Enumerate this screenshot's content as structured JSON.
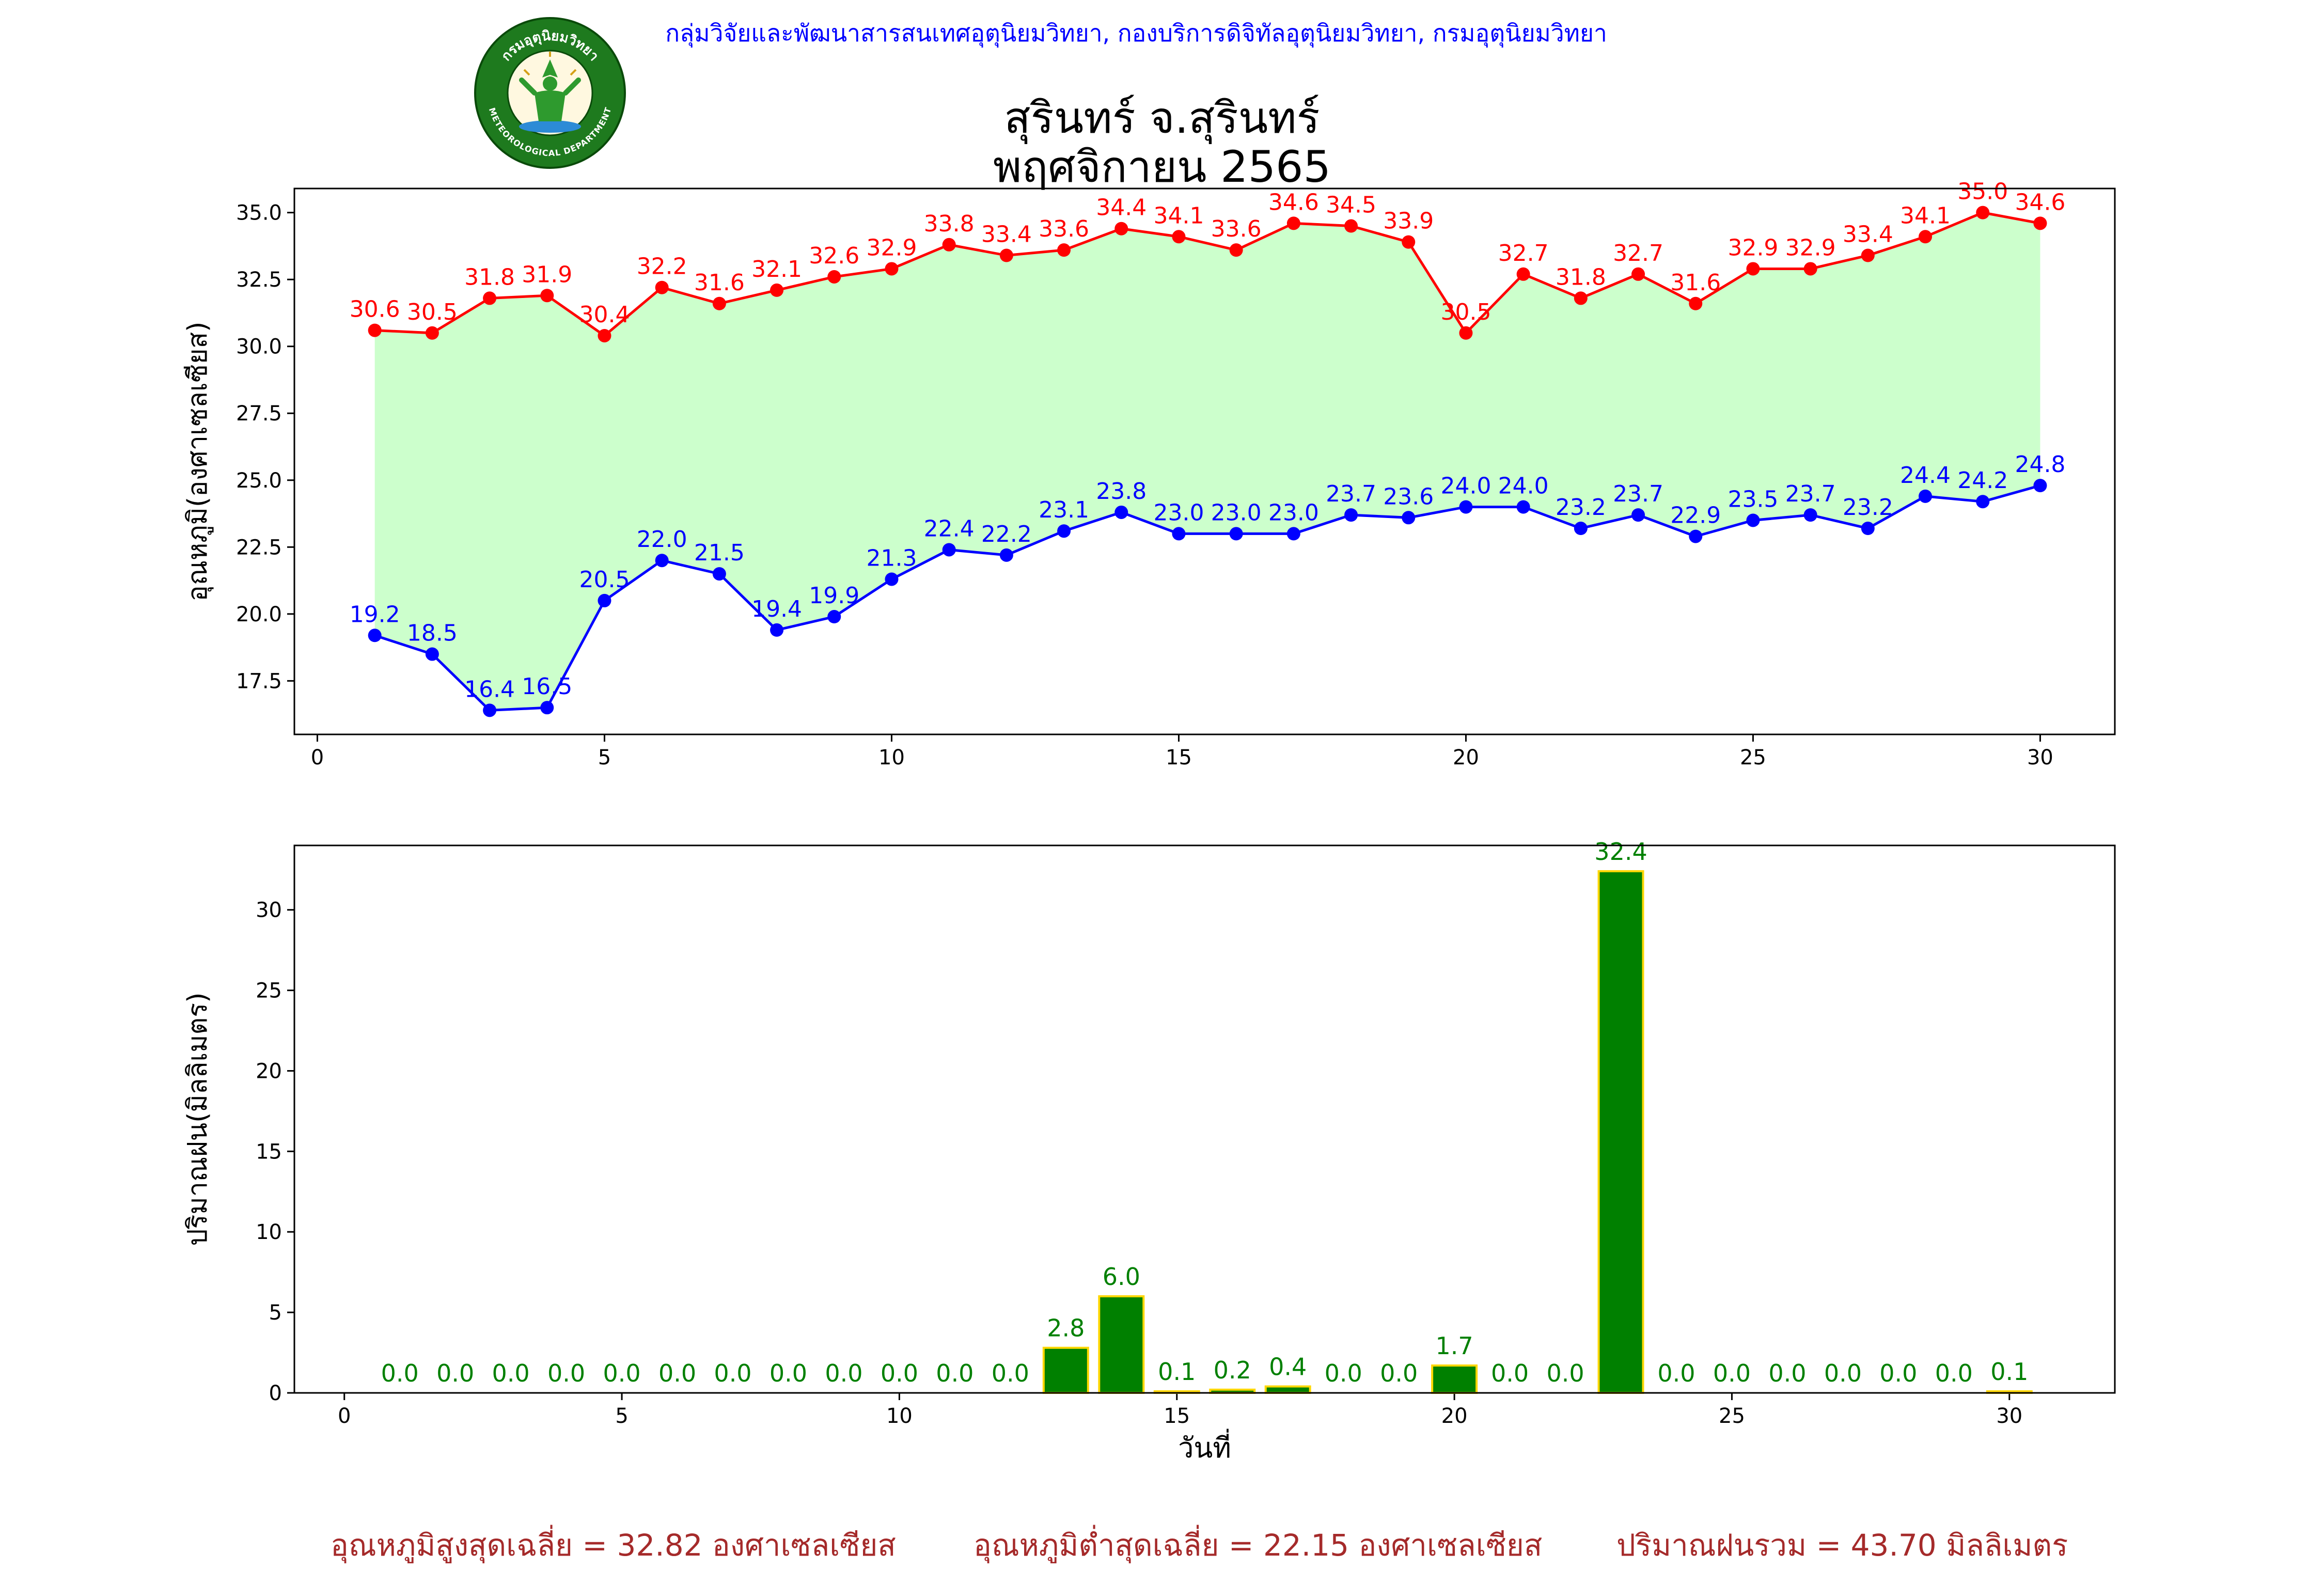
{
  "header": {
    "source": "กลุ่มวิจัยและพัฒนาสารสนเทศอุตุนิยมวิทยา, กองบริการดิจิทัลอุตุนิยมวิทยา, กรมอุตุนิยมวิทยา",
    "logo_text_top": "กรมอุตุนิยมวิทยา",
    "logo_text_bottom": "METEOROLOGICAL DEPARTMENT",
    "title": "สุรินทร์ จ.สุรินทร์",
    "subtitle": "พฤศจิกายน 2565"
  },
  "colors": {
    "max_line": "#ff0000",
    "min_line": "#0000ff",
    "fill": "#ccffcc",
    "rain_bar": "#008000",
    "rain_edge": "#ffd700",
    "rain_label": "#008000",
    "footer": "#a52a2a",
    "header": "#0000ff"
  },
  "chart_data": [
    {
      "type": "line",
      "ylabel": "อุณหภูมิ(องศาเซลเซียส)",
      "xlabel": "",
      "x": [
        1,
        2,
        3,
        4,
        5,
        6,
        7,
        8,
        9,
        10,
        11,
        12,
        13,
        14,
        15,
        16,
        17,
        18,
        19,
        20,
        21,
        22,
        23,
        24,
        25,
        26,
        27,
        28,
        29,
        30
      ],
      "series": [
        {
          "key": "max",
          "values": [
            30.6,
            30.5,
            31.8,
            31.9,
            30.4,
            32.2,
            31.6,
            32.1,
            32.6,
            32.9,
            33.8,
            33.4,
            33.6,
            34.4,
            34.1,
            33.6,
            34.6,
            34.5,
            33.9,
            30.5,
            32.7,
            31.8,
            32.7,
            31.6,
            32.9,
            32.9,
            33.4,
            34.1,
            35.0,
            34.6
          ]
        },
        {
          "key": "min",
          "values": [
            19.2,
            18.5,
            16.4,
            16.5,
            20.5,
            22.0,
            21.5,
            19.4,
            19.9,
            21.3,
            22.4,
            22.2,
            23.1,
            23.8,
            23.0,
            23.0,
            23.0,
            23.7,
            23.6,
            24.0,
            24.0,
            23.2,
            23.7,
            22.9,
            23.5,
            23.7,
            23.2,
            24.4,
            24.2,
            24.8
          ]
        }
      ],
      "xlim": [
        -0.4,
        31.3
      ],
      "ylim": [
        15.5,
        35.9
      ],
      "xticks": [
        0,
        5,
        10,
        15,
        20,
        25,
        30
      ],
      "yticks": [
        17.5,
        20.0,
        22.5,
        25.0,
        27.5,
        30.0,
        32.5,
        35.0
      ],
      "fill_between": true,
      "grid": false
    },
    {
      "type": "bar",
      "ylabel": "ปริมาณฝน(มิลลิเมตร)",
      "xlabel": "วันที่",
      "x": [
        1,
        2,
        3,
        4,
        5,
        6,
        7,
        8,
        9,
        10,
        11,
        12,
        13,
        14,
        15,
        16,
        17,
        18,
        19,
        20,
        21,
        22,
        23,
        24,
        25,
        26,
        27,
        28,
        29,
        30
      ],
      "values": [
        0.0,
        0.0,
        0.0,
        0.0,
        0.0,
        0.0,
        0.0,
        0.0,
        0.0,
        0.0,
        0.0,
        0.0,
        2.8,
        6.0,
        0.1,
        0.2,
        0.4,
        0.0,
        0.0,
        1.7,
        0.0,
        0.0,
        32.4,
        0.0,
        0.0,
        0.0,
        0.0,
        0.0,
        0.0,
        0.1
      ],
      "xlim": [
        -0.9,
        31.9
      ],
      "ylim": [
        0,
        34.0
      ],
      "xticks": [
        0,
        5,
        10,
        15,
        20,
        25,
        30
      ],
      "yticks": [
        0,
        5,
        10,
        15,
        20,
        25,
        30
      ],
      "grid": false
    }
  ],
  "footer": {
    "avg_max": "อุณหภูมิสูงสุดเฉลี่ย = 32.82 องศาเซลเซียส",
    "avg_min": "อุณหภูมิต่ำสุดเฉลี่ย = 22.15 องศาเซลเซียส",
    "total_rain": "ปริมาณฝนรวม = 43.70 มิลลิเมตร"
  }
}
